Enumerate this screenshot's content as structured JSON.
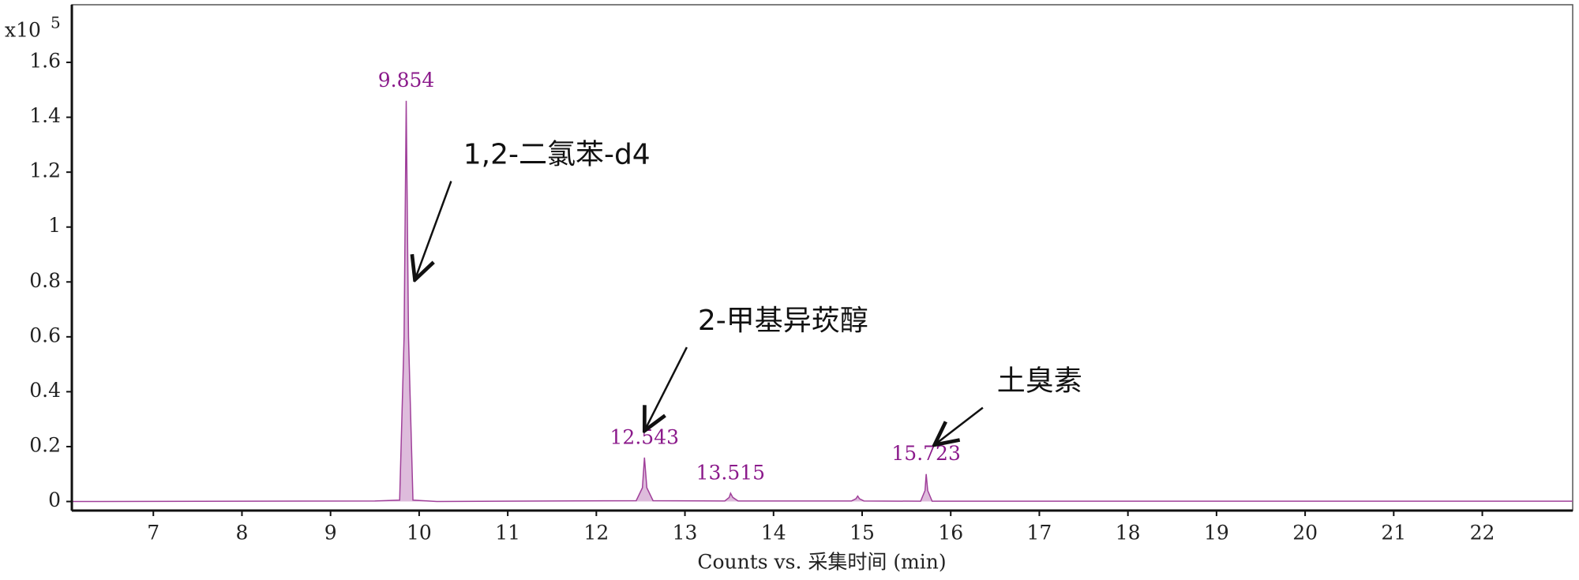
{
  "chart_data": {
    "type": "line",
    "y_scale_label": "x10",
    "y_scale_exponent": "5",
    "x_label": "Counts vs. 采集时间 (min)",
    "xlim": [
      6.08,
      23.02
    ],
    "xticks": [
      7,
      8,
      9,
      10,
      11,
      12,
      13,
      14,
      15,
      16,
      17,
      18,
      19,
      20,
      21,
      22
    ],
    "ylim": [
      -0.033,
      1.81
    ],
    "yticks": [
      0,
      0.2,
      0.4,
      0.6,
      0.8,
      1,
      1.2,
      1.4,
      1.6
    ],
    "series": [
      {
        "color": "#a0409a",
        "x": [
          6.08,
          9.5,
          9.78,
          9.83,
          9.854,
          9.88,
          9.93,
          10.2,
          12.45,
          12.52,
          12.543,
          12.57,
          12.64,
          13.45,
          13.5,
          13.515,
          13.54,
          13.6,
          14.88,
          14.93,
          14.95,
          14.97,
          15.02,
          15.66,
          15.71,
          15.723,
          15.74,
          15.79,
          23.02
        ],
        "values": [
          0,
          0.002,
          0.005,
          0.6,
          1.46,
          0.6,
          0.005,
          0,
          0.003,
          0.05,
          0.16,
          0.05,
          0.003,
          0.002,
          0.015,
          0.03,
          0.015,
          0.002,
          0.002,
          0.01,
          0.02,
          0.01,
          0.002,
          0.001,
          0.04,
          0.1,
          0.04,
          0.001,
          0.001
        ]
      }
    ],
    "peaks": [
      {
        "x": 9.854,
        "y": 1.46
      },
      {
        "x": 12.543,
        "y": 0.16
      },
      {
        "x": 13.515,
        "y": 0.03
      },
      {
        "x": 15.723,
        "y": 0.1
      }
    ],
    "peak_label_color": "#8b1a8b",
    "annotations": [
      "1,2-二氯苯-d4",
      "2-甲基异莰醇",
      "土臭素"
    ]
  }
}
